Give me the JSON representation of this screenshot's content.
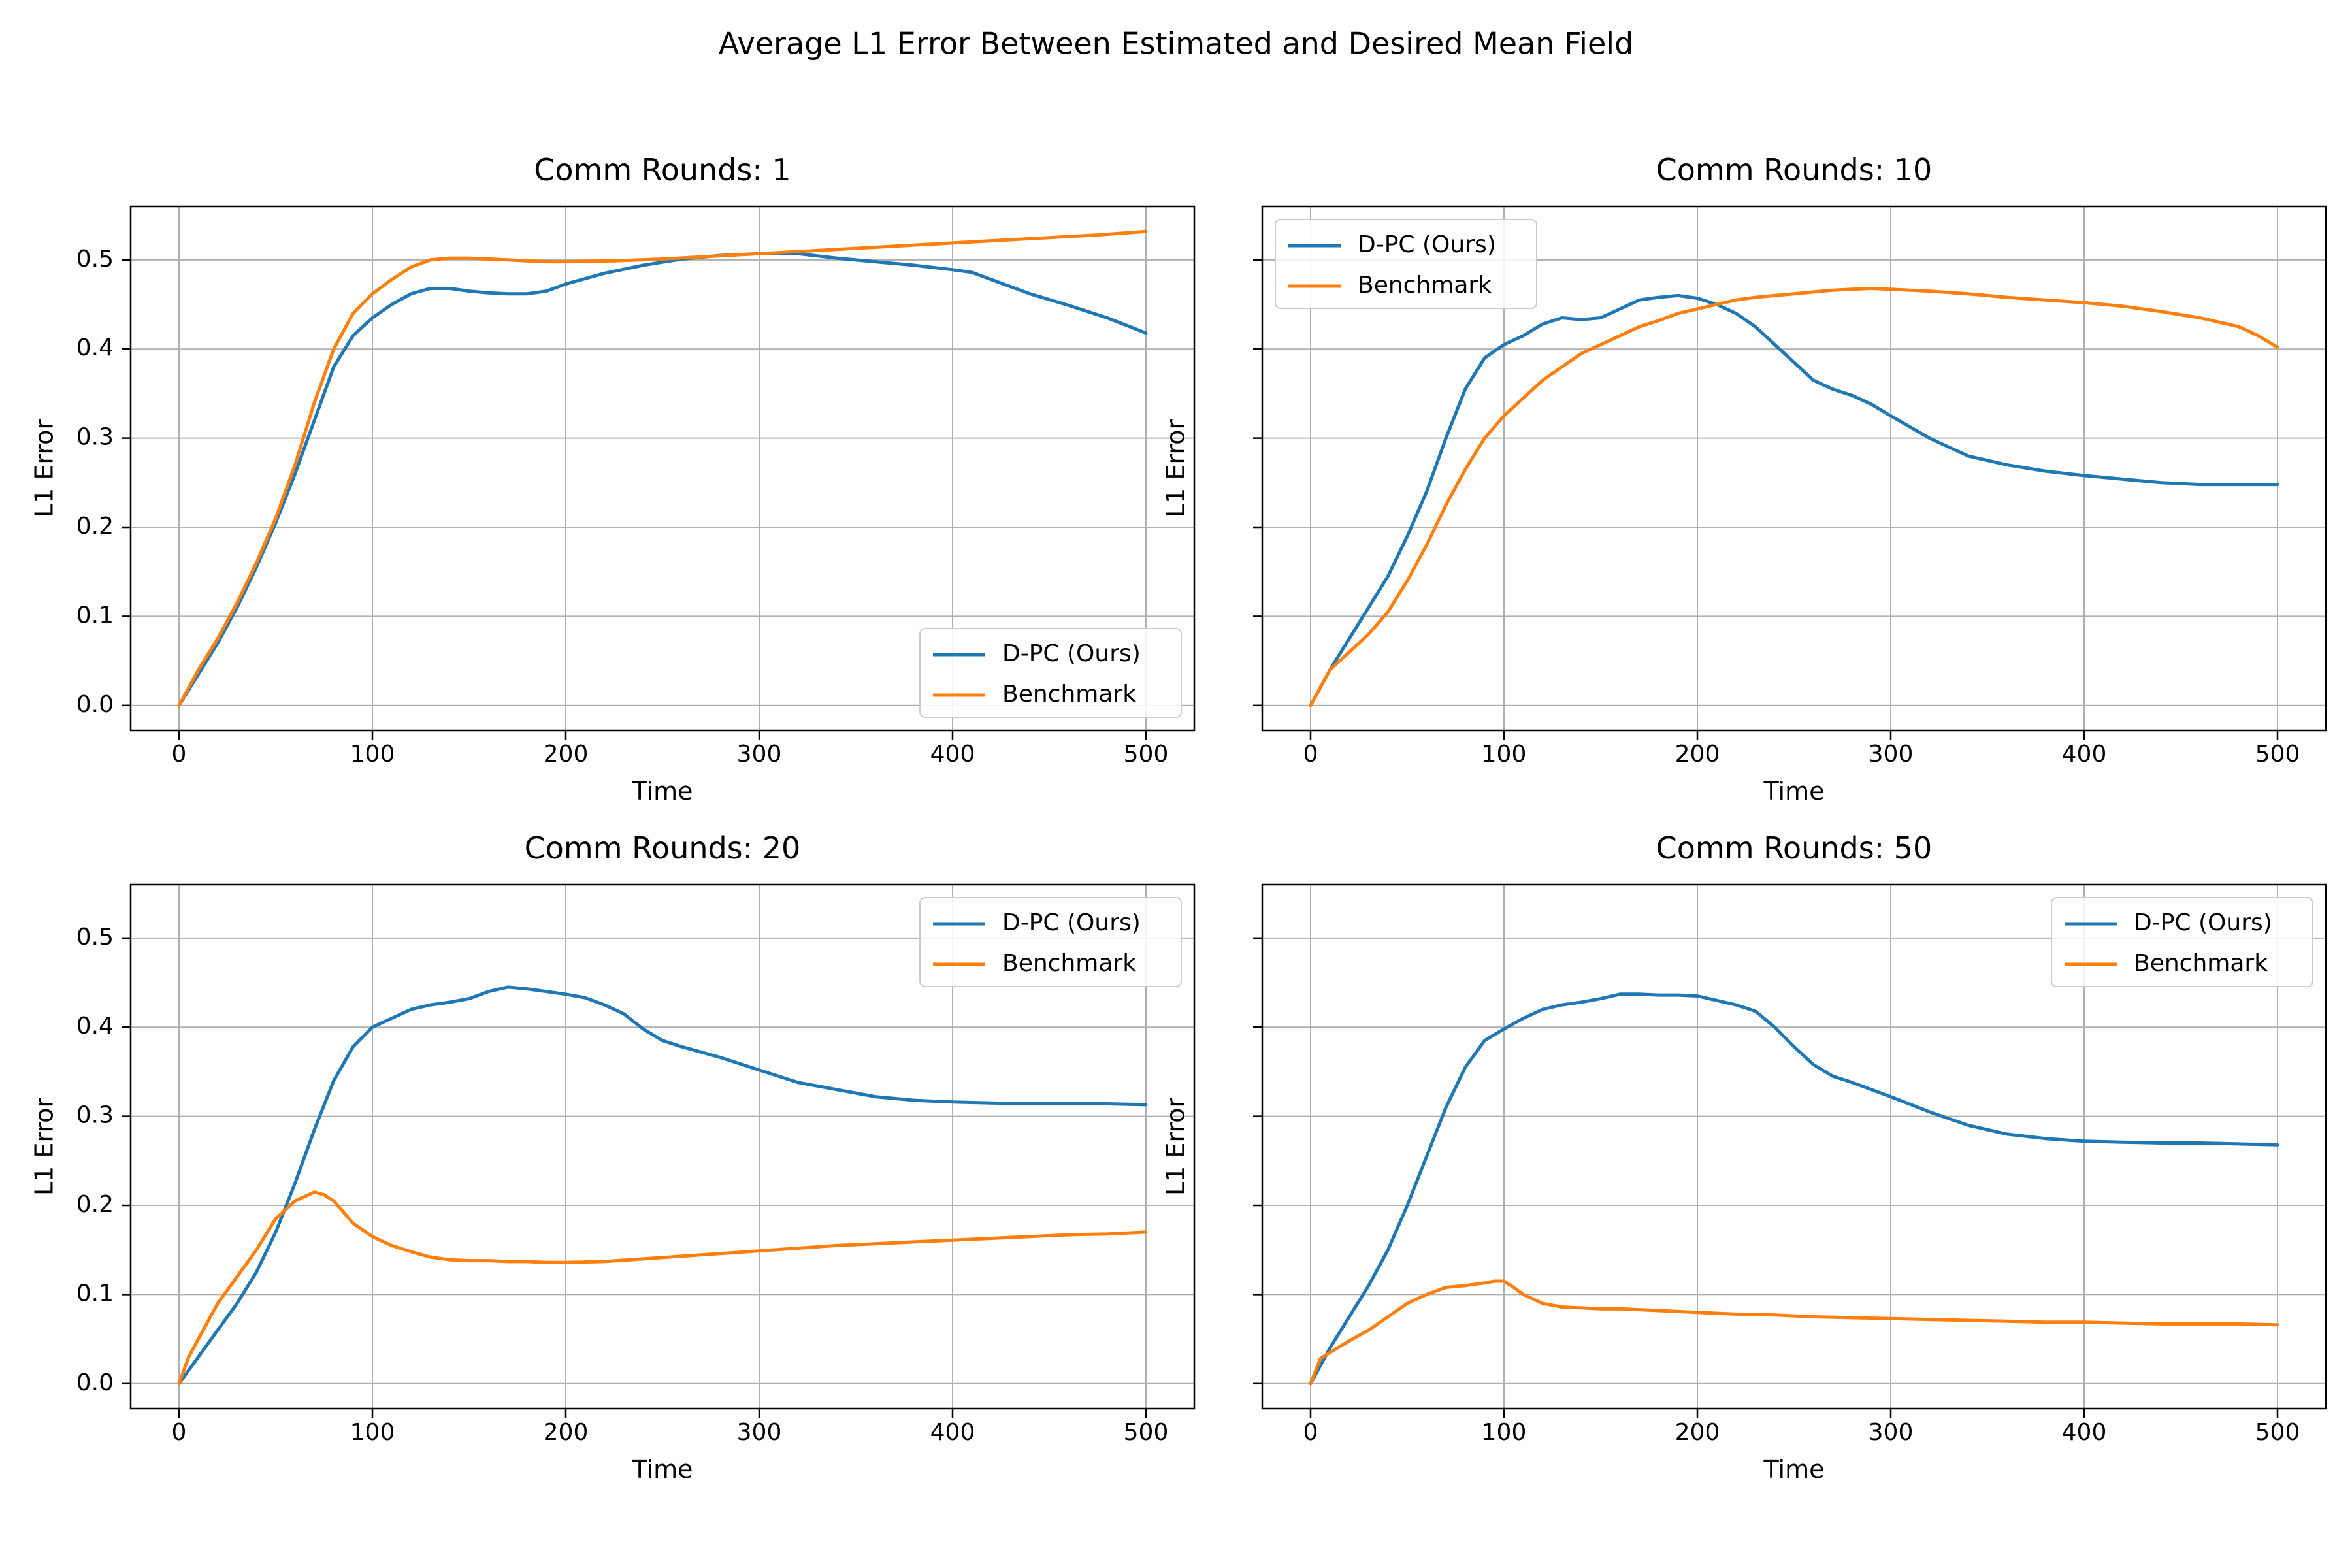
{
  "figure": {
    "title": "Average L1 Error Between Estimated and Desired Mean Field"
  },
  "colors": {
    "dpc": "#1f77b4",
    "benchmark": "#ff7f0e",
    "grid": "#b0b0b0",
    "axes": "#000000"
  },
  "chart_data": [
    {
      "type": "line",
      "title": "Comm Rounds: 1",
      "xlabel": "Time",
      "ylabel": "L1 Error",
      "xlim": [
        -25,
        525
      ],
      "ylim": [
        -0.028,
        0.56
      ],
      "xticks": [
        0,
        100,
        200,
        300,
        400,
        500
      ],
      "yticks": [
        0.0,
        0.1,
        0.2,
        0.3,
        0.4,
        0.5
      ],
      "grid": true,
      "legend": "lower-right",
      "series": [
        {
          "name": "D-PC (Ours)",
          "color": "#1f77b4",
          "x": [
            0,
            10,
            20,
            30,
            40,
            50,
            60,
            70,
            80,
            90,
            100,
            110,
            120,
            130,
            140,
            150,
            160,
            170,
            180,
            190,
            200,
            220,
            240,
            260,
            280,
            300,
            320,
            340,
            360,
            380,
            400,
            410,
            420,
            440,
            460,
            480,
            500
          ],
          "y": [
            0,
            0.035,
            0.07,
            0.11,
            0.155,
            0.205,
            0.26,
            0.32,
            0.38,
            0.415,
            0.435,
            0.45,
            0.462,
            0.468,
            0.468,
            0.465,
            0.463,
            0.462,
            0.462,
            0.465,
            0.473,
            0.485,
            0.494,
            0.501,
            0.505,
            0.507,
            0.507,
            0.502,
            0.498,
            0.494,
            0.489,
            0.486,
            0.478,
            0.462,
            0.449,
            0.435,
            0.418
          ]
        },
        {
          "name": "Benchmark",
          "color": "#ff7f0e",
          "x": [
            0,
            10,
            20,
            30,
            40,
            50,
            60,
            70,
            80,
            90,
            100,
            110,
            120,
            130,
            140,
            150,
            160,
            170,
            180,
            190,
            200,
            225,
            250,
            275,
            300,
            325,
            350,
            375,
            400,
            425,
            450,
            475,
            500
          ],
          "y": [
            0,
            0.04,
            0.075,
            0.115,
            0.16,
            0.21,
            0.27,
            0.34,
            0.4,
            0.44,
            0.462,
            0.478,
            0.492,
            0.5,
            0.502,
            0.502,
            0.501,
            0.5,
            0.499,
            0.498,
            0.498,
            0.499,
            0.501,
            0.504,
            0.507,
            0.51,
            0.513,
            0.516,
            0.519,
            0.522,
            0.525,
            0.528,
            0.532
          ]
        }
      ]
    },
    {
      "type": "line",
      "title": "Comm Rounds: 10",
      "xlabel": "Time",
      "ylabel": "L1 Error",
      "xlim": [
        -25,
        525
      ],
      "ylim": [
        -0.028,
        0.56
      ],
      "xticks": [
        0,
        100,
        200,
        300,
        400,
        500
      ],
      "yticks": [
        0.0,
        0.1,
        0.2,
        0.3,
        0.4,
        0.5
      ],
      "grid": true,
      "legend": "upper-left",
      "series": [
        {
          "name": "D-PC (Ours)",
          "color": "#1f77b4",
          "x": [
            0,
            10,
            20,
            30,
            40,
            50,
            60,
            70,
            80,
            90,
            100,
            110,
            120,
            130,
            140,
            150,
            160,
            170,
            180,
            190,
            200,
            210,
            220,
            230,
            240,
            250,
            260,
            270,
            280,
            290,
            300,
            320,
            340,
            360,
            380,
            400,
            420,
            440,
            460,
            480,
            500
          ],
          "y": [
            0,
            0.04,
            0.075,
            0.11,
            0.145,
            0.19,
            0.24,
            0.3,
            0.355,
            0.39,
            0.405,
            0.415,
            0.428,
            0.435,
            0.433,
            0.435,
            0.445,
            0.455,
            0.458,
            0.46,
            0.457,
            0.45,
            0.44,
            0.425,
            0.405,
            0.385,
            0.365,
            0.355,
            0.348,
            0.338,
            0.325,
            0.3,
            0.28,
            0.27,
            0.263,
            0.258,
            0.254,
            0.25,
            0.248,
            0.248,
            0.248
          ]
        },
        {
          "name": "Benchmark",
          "color": "#ff7f0e",
          "x": [
            0,
            10,
            20,
            30,
            40,
            50,
            60,
            70,
            80,
            90,
            100,
            110,
            120,
            130,
            140,
            150,
            160,
            170,
            180,
            190,
            200,
            210,
            220,
            230,
            240,
            250,
            260,
            270,
            280,
            290,
            300,
            320,
            340,
            360,
            380,
            400,
            420,
            440,
            460,
            480,
            490,
            500
          ],
          "y": [
            0,
            0.04,
            0.06,
            0.08,
            0.105,
            0.14,
            0.18,
            0.225,
            0.265,
            0.3,
            0.325,
            0.345,
            0.365,
            0.38,
            0.395,
            0.405,
            0.415,
            0.425,
            0.432,
            0.44,
            0.445,
            0.45,
            0.455,
            0.458,
            0.46,
            0.462,
            0.464,
            0.466,
            0.467,
            0.468,
            0.467,
            0.465,
            0.462,
            0.458,
            0.455,
            0.452,
            0.448,
            0.442,
            0.435,
            0.425,
            0.415,
            0.402
          ]
        }
      ]
    },
    {
      "type": "line",
      "title": "Comm Rounds: 20",
      "xlabel": "Time",
      "ylabel": "L1 Error",
      "xlim": [
        -25,
        525
      ],
      "ylim": [
        -0.028,
        0.56
      ],
      "xticks": [
        0,
        100,
        200,
        300,
        400,
        500
      ],
      "yticks": [
        0.0,
        0.1,
        0.2,
        0.3,
        0.4,
        0.5
      ],
      "grid": true,
      "legend": "upper-right",
      "series": [
        {
          "name": "D-PC (Ours)",
          "color": "#1f77b4",
          "x": [
            0,
            10,
            20,
            30,
            40,
            50,
            60,
            70,
            80,
            90,
            100,
            110,
            120,
            130,
            140,
            150,
            160,
            170,
            180,
            190,
            200,
            210,
            220,
            230,
            240,
            250,
            260,
            270,
            280,
            300,
            320,
            340,
            360,
            380,
            400,
            420,
            440,
            460,
            480,
            500
          ],
          "y": [
            0,
            0.03,
            0.06,
            0.09,
            0.125,
            0.17,
            0.225,
            0.285,
            0.34,
            0.378,
            0.4,
            0.41,
            0.42,
            0.425,
            0.428,
            0.432,
            0.44,
            0.445,
            0.443,
            0.44,
            0.437,
            0.433,
            0.425,
            0.415,
            0.398,
            0.385,
            0.378,
            0.372,
            0.366,
            0.352,
            0.338,
            0.33,
            0.322,
            0.318,
            0.316,
            0.315,
            0.314,
            0.314,
            0.314,
            0.313
          ]
        },
        {
          "name": "Benchmark",
          "color": "#ff7f0e",
          "x": [
            0,
            5,
            10,
            20,
            30,
            40,
            50,
            60,
            70,
            75,
            80,
            90,
            100,
            110,
            120,
            130,
            140,
            150,
            160,
            170,
            180,
            190,
            200,
            220,
            240,
            260,
            280,
            300,
            320,
            340,
            360,
            380,
            400,
            420,
            440,
            460,
            480,
            500
          ],
          "y": [
            0,
            0.03,
            0.05,
            0.09,
            0.12,
            0.15,
            0.185,
            0.205,
            0.215,
            0.212,
            0.205,
            0.18,
            0.165,
            0.155,
            0.148,
            0.142,
            0.139,
            0.138,
            0.138,
            0.137,
            0.137,
            0.136,
            0.136,
            0.137,
            0.14,
            0.143,
            0.146,
            0.149,
            0.152,
            0.155,
            0.157,
            0.159,
            0.161,
            0.163,
            0.165,
            0.167,
            0.168,
            0.17
          ]
        }
      ]
    },
    {
      "type": "line",
      "title": "Comm Rounds: 50",
      "xlabel": "Time",
      "ylabel": "L1 Error",
      "xlim": [
        -25,
        525
      ],
      "ylim": [
        -0.028,
        0.56
      ],
      "xticks": [
        0,
        100,
        200,
        300,
        400,
        500
      ],
      "yticks": [
        0.0,
        0.1,
        0.2,
        0.3,
        0.4,
        0.5
      ],
      "grid": true,
      "legend": "upper-right",
      "series": [
        {
          "name": "D-PC (Ours)",
          "color": "#1f77b4",
          "x": [
            0,
            10,
            20,
            30,
            40,
            50,
            60,
            70,
            80,
            90,
            100,
            110,
            120,
            130,
            140,
            150,
            160,
            170,
            180,
            190,
            200,
            210,
            220,
            230,
            240,
            250,
            260,
            270,
            280,
            300,
            320,
            340,
            360,
            380,
            400,
            420,
            440,
            460,
            480,
            500
          ],
          "y": [
            0,
            0.04,
            0.075,
            0.11,
            0.15,
            0.2,
            0.255,
            0.31,
            0.355,
            0.385,
            0.398,
            0.41,
            0.42,
            0.425,
            0.428,
            0.432,
            0.437,
            0.437,
            0.436,
            0.436,
            0.435,
            0.43,
            0.425,
            0.418,
            0.4,
            0.378,
            0.358,
            0.345,
            0.338,
            0.322,
            0.305,
            0.29,
            0.28,
            0.275,
            0.272,
            0.271,
            0.27,
            0.27,
            0.269,
            0.268
          ]
        },
        {
          "name": "Benchmark",
          "color": "#ff7f0e",
          "x": [
            0,
            5,
            10,
            20,
            30,
            40,
            50,
            60,
            70,
            80,
            90,
            95,
            100,
            105,
            110,
            120,
            130,
            140,
            150,
            160,
            180,
            200,
            220,
            240,
            260,
            280,
            300,
            320,
            340,
            360,
            380,
            400,
            420,
            440,
            460,
            480,
            500
          ],
          "y": [
            0,
            0.028,
            0.035,
            0.048,
            0.06,
            0.075,
            0.09,
            0.1,
            0.108,
            0.11,
            0.113,
            0.115,
            0.115,
            0.108,
            0.1,
            0.09,
            0.086,
            0.085,
            0.084,
            0.084,
            0.082,
            0.08,
            0.078,
            0.077,
            0.075,
            0.074,
            0.073,
            0.072,
            0.071,
            0.07,
            0.069,
            0.069,
            0.068,
            0.067,
            0.067,
            0.067,
            0.066
          ]
        }
      ]
    }
  ]
}
